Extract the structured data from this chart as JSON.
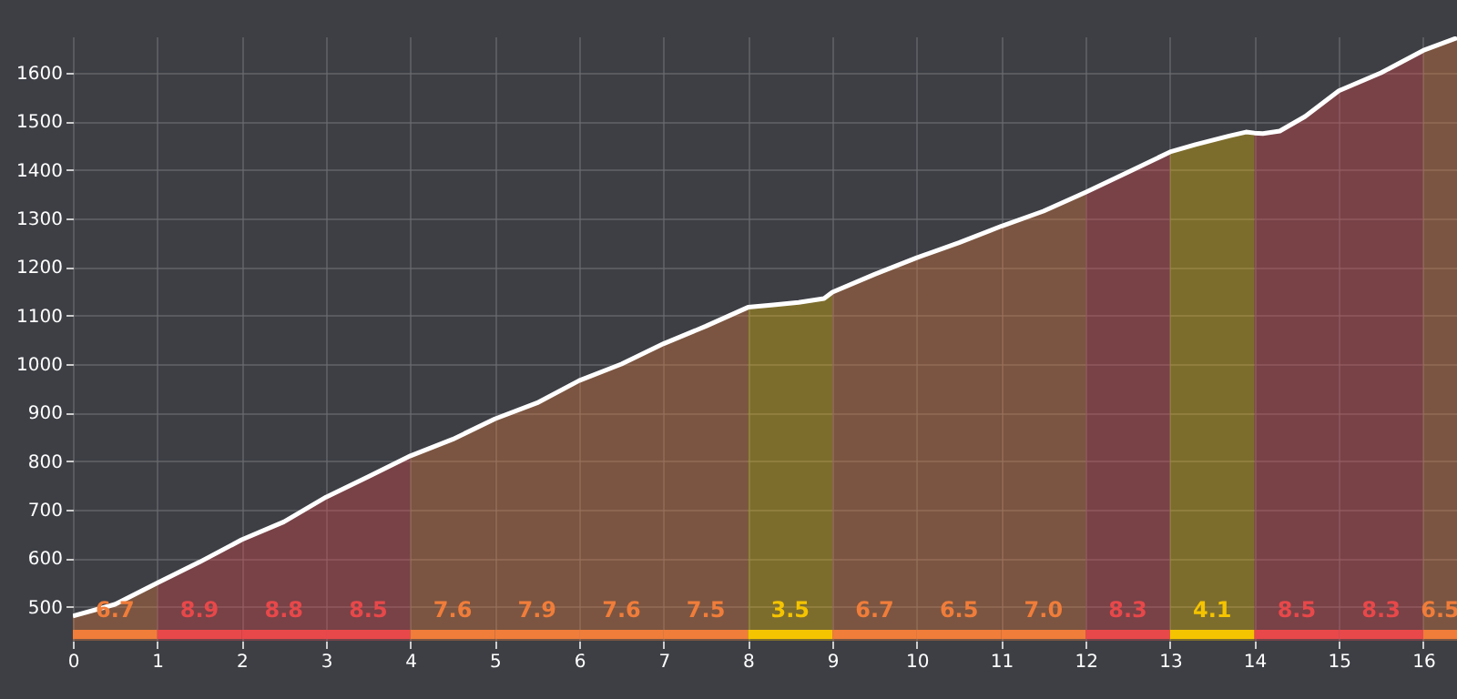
{
  "chart_data": {
    "type": "line",
    "series": [
      {
        "type": "area",
        "color": "#f07d3a",
        "x": [
          0,
          0.5,
          1
        ],
        "values": [
          481,
          505,
          549
        ]
      },
      {
        "type": "area",
        "color": "#e8484a",
        "x": [
          1,
          1.5,
          2
        ],
        "values": [
          549,
          592,
          638
        ]
      },
      {
        "type": "area",
        "color": "#e8484a",
        "x": [
          2,
          2.5,
          3
        ],
        "values": [
          638,
          675,
          726
        ]
      },
      {
        "type": "area",
        "color": "#e8484a",
        "x": [
          3,
          3.5,
          4
        ],
        "values": [
          726,
          768,
          811
        ]
      },
      {
        "type": "area",
        "color": "#f07d3a",
        "x": [
          4,
          4.5,
          5
        ],
        "values": [
          811,
          845,
          887
        ]
      },
      {
        "type": "area",
        "color": "#f07d3a",
        "x": [
          5,
          5.5,
          6
        ],
        "values": [
          887,
          920,
          966
        ]
      },
      {
        "type": "area",
        "color": "#f07d3a",
        "x": [
          6,
          6.5,
          7
        ],
        "values": [
          966,
          1000,
          1042
        ]
      },
      {
        "type": "area",
        "color": "#f07d3a",
        "x": [
          7,
          7.5,
          8
        ],
        "values": [
          1042,
          1078,
          1117
        ]
      },
      {
        "type": "area",
        "color": "#f5c400",
        "x": [
          8,
          8.3,
          8.6,
          8.9,
          9
        ],
        "values": [
          1117,
          1122,
          1127,
          1135,
          1148
        ]
      },
      {
        "type": "area",
        "color": "#f07d3a",
        "x": [
          9,
          9.5,
          10
        ],
        "values": [
          1148,
          1185,
          1219
        ]
      },
      {
        "type": "area",
        "color": "#f07d3a",
        "x": [
          10,
          10.5,
          11
        ],
        "values": [
          1219,
          1250,
          1284
        ]
      },
      {
        "type": "area",
        "color": "#f07d3a",
        "x": [
          11,
          11.5,
          12
        ],
        "values": [
          1284,
          1315,
          1354
        ]
      },
      {
        "type": "area",
        "color": "#e8484a",
        "x": [
          12,
          12.5,
          13
        ],
        "values": [
          1354,
          1395,
          1437
        ]
      },
      {
        "type": "area",
        "color": "#f5c400",
        "x": [
          13,
          13.3,
          13.7,
          13.9,
          14
        ],
        "values": [
          1437,
          1452,
          1470,
          1478,
          1476
        ]
      },
      {
        "type": "area",
        "color": "#e8484a",
        "x": [
          14,
          14.1,
          14.3,
          14.6,
          15
        ],
        "values": [
          1476,
          1475,
          1480,
          1510,
          1563
        ]
      },
      {
        "type": "area",
        "color": "#e8484a",
        "x": [
          15,
          15.5,
          16
        ],
        "values": [
          1563,
          1600,
          1646
        ]
      },
      {
        "type": "area",
        "color": "#f07d3a",
        "x": [
          16,
          16.4
        ],
        "values": [
          1646,
          1672
        ]
      },
      {
        "color": "#ffffff",
        "x": [
          0,
          0.5,
          1,
          1.5,
          2,
          2.5,
          3,
          3.5,
          4,
          4.5,
          5,
          5.5,
          6,
          6.5,
          7,
          7.5,
          8,
          8.3,
          8.6,
          8.9,
          9,
          9.5,
          10,
          10.5,
          11,
          11.5,
          12,
          12.5,
          13,
          13.3,
          13.7,
          13.9,
          14,
          14.1,
          14.3,
          14.6,
          15,
          15.5,
          16,
          16.4
        ],
        "values": [
          481,
          505,
          549,
          592,
          638,
          675,
          726,
          768,
          811,
          845,
          887,
          920,
          966,
          1000,
          1042,
          1078,
          1117,
          1122,
          1127,
          1135,
          1148,
          1185,
          1219,
          1250,
          1284,
          1315,
          1354,
          1395,
          1437,
          1452,
          1470,
          1478,
          1476,
          1475,
          1480,
          1510,
          1563,
          1600,
          1646,
          1672
        ]
      }
    ],
    "xlim": [
      0,
      16.4
    ],
    "xticks": [
      0,
      1,
      2,
      3,
      4,
      5,
      6,
      7,
      8,
      9,
      10,
      11,
      12,
      13,
      14,
      15,
      16
    ],
    "ylim": [
      430,
      1675
    ],
    "yticks": [
      500,
      600,
      700,
      800,
      900,
      1000,
      1100,
      1200,
      1300,
      1400,
      1500,
      1600
    ],
    "grid": true,
    "annotations": [
      "6.7",
      "8.9",
      "8.8",
      "8.5",
      "7.6",
      "7.9",
      "7.6",
      "7.5",
      "3.5",
      "6.7",
      "6.5",
      "7.0",
      "8.3",
      "4.1",
      "8.5",
      "8.3",
      "6.5"
    ]
  }
}
